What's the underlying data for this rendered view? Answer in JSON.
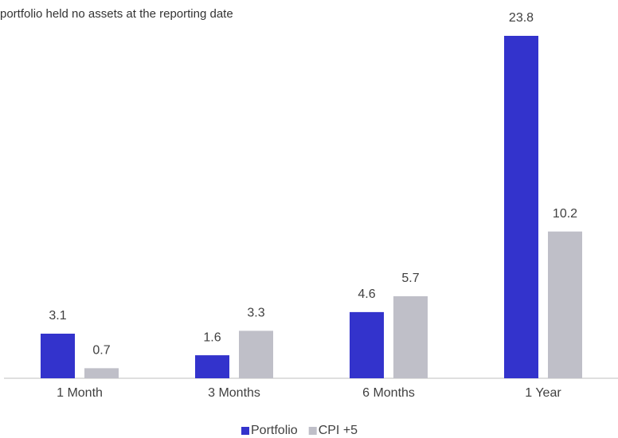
{
  "chart_data": {
    "type": "bar",
    "subtitle": "portfolio held no assets at the reporting date",
    "categories": [
      "1 Month",
      "3 Months",
      "6 Months",
      "1 Year"
    ],
    "series": [
      {
        "name": "Portfolio",
        "color": "#3333cc",
        "values": [
          3.1,
          1.6,
          4.6,
          23.8
        ]
      },
      {
        "name": "CPI +5",
        "color": "#bfbfc8",
        "values": [
          0.7,
          3.3,
          5.7,
          10.2
        ]
      }
    ],
    "legend": "bottom"
  }
}
